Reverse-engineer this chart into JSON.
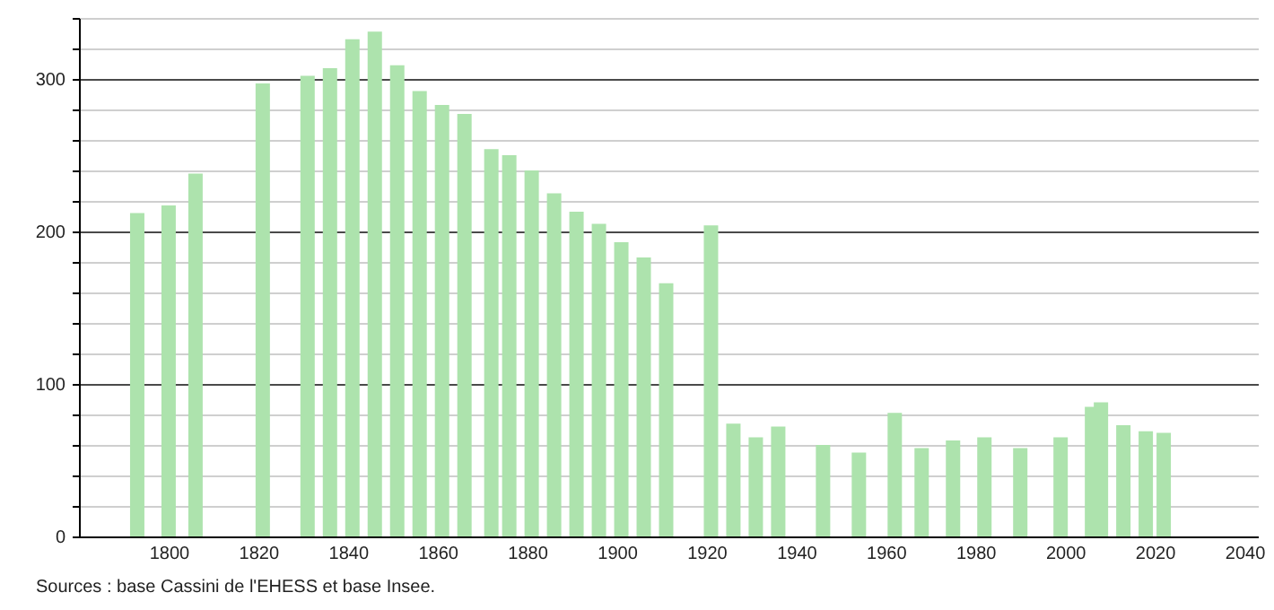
{
  "chart_data": {
    "type": "bar",
    "x": [
      1793,
      1800,
      1806,
      1821,
      1831,
      1836,
      1841,
      1846,
      1851,
      1856,
      1861,
      1866,
      1872,
      1876,
      1881,
      1886,
      1891,
      1896,
      1901,
      1906,
      1911,
      1921,
      1926,
      1931,
      1936,
      1946,
      1954,
      1962,
      1968,
      1975,
      1982,
      1990,
      1999,
      2006,
      2008,
      2013,
      2018,
      2022
    ],
    "values": [
      212,
      217,
      238,
      297,
      302,
      307,
      326,
      331,
      309,
      292,
      283,
      277,
      254,
      250,
      240,
      225,
      213,
      205,
      193,
      183,
      166,
      204,
      74,
      65,
      72,
      60,
      55,
      81,
      58,
      63,
      65,
      58,
      65,
      85,
      88,
      73,
      69,
      68
    ],
    "color": "#ade3ad",
    "xlim": [
      1780,
      2043
    ],
    "xticks": [
      1800,
      1820,
      1840,
      1860,
      1880,
      1900,
      1920,
      1940,
      1960,
      1980,
      2000,
      2020,
      2040
    ],
    "ylim": [
      0,
      340
    ],
    "yticks": [
      0,
      {
        "value": 20,
        "label": null
      },
      {
        "value": 40,
        "label": null
      },
      {
        "value": 60,
        "label": null
      },
      {
        "value": 80,
        "label": null
      },
      100,
      {
        "value": 120,
        "label": null
      },
      {
        "value": 140,
        "label": null
      },
      {
        "value": 160,
        "label": null
      },
      {
        "value": 180,
        "label": null
      },
      200,
      {
        "value": 220,
        "label": null
      },
      {
        "value": 240,
        "label": null
      },
      {
        "value": 260,
        "label": null
      },
      {
        "value": 280,
        "label": null
      },
      300,
      {
        "value": 320,
        "label": null
      },
      {
        "value": 340,
        "label": null
      }
    ],
    "grid": "y",
    "annotations": [
      "Sources : base Cassini de l'EHESS et base Insee."
    ]
  }
}
